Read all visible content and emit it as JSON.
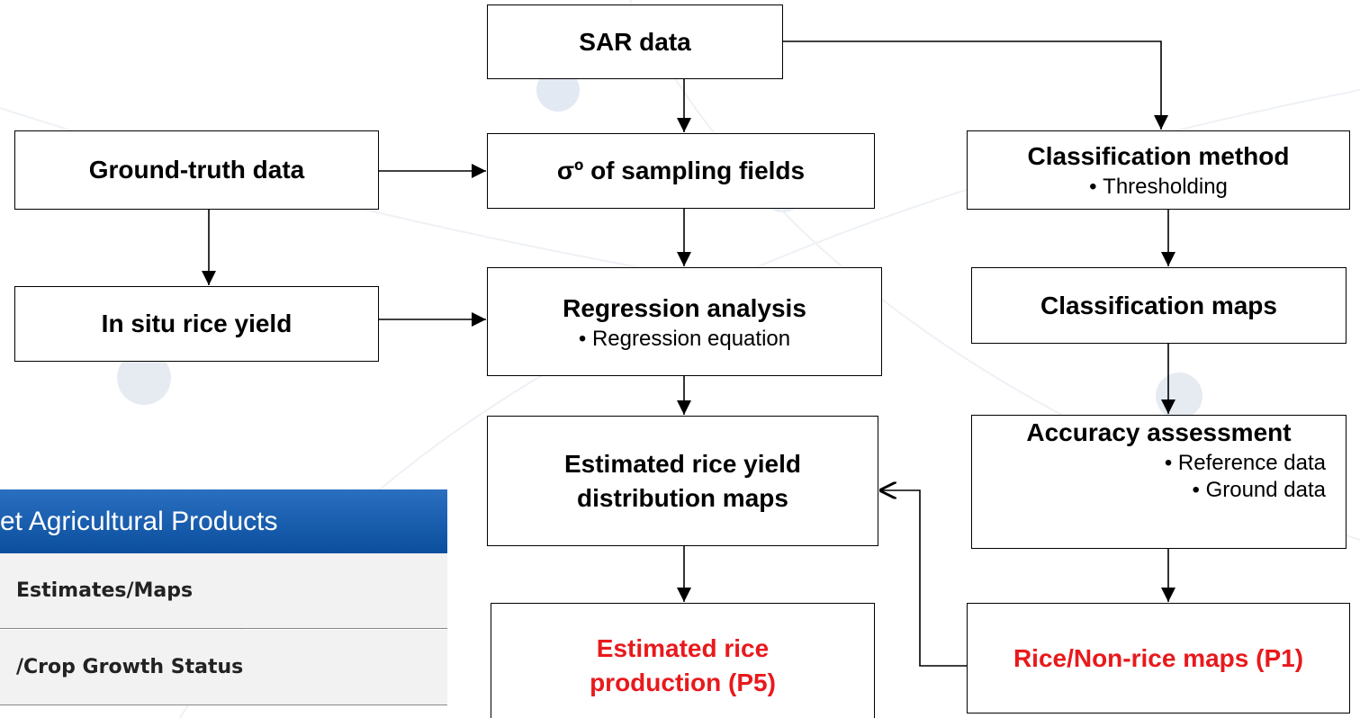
{
  "nodes": [
    {
      "label": "SAR data"
    },
    {
      "label": "Ground-truth data"
    },
    {
      "label": "σº of sampling fields"
    },
    {
      "label": "Classification method",
      "bullets": [
        "Thresholding"
      ]
    },
    {
      "label": "In situ rice yield"
    },
    {
      "label": "Regression analysis",
      "bullets": [
        "Regression equation"
      ]
    },
    {
      "label": "Classification maps"
    },
    {
      "label": "Estimated rice yield distribution maps"
    },
    {
      "label": "Accuracy assessment",
      "bullets": [
        "Reference data",
        "Ground data"
      ]
    },
    {
      "label": "Estimated rice production (P5)"
    },
    {
      "label": "Rice/Non-rice maps (P1)"
    }
  ],
  "panel": {
    "header": "et Agricultural Products",
    "rows": [
      "Estimates/Maps",
      "/Crop Growth Status"
    ]
  }
}
